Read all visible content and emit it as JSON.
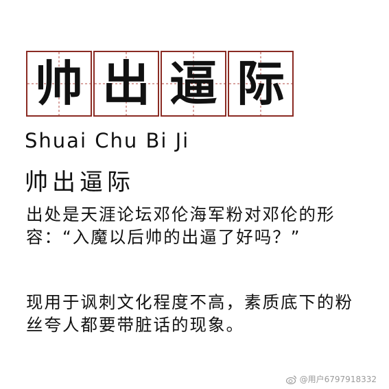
{
  "title_chars": [
    "帅",
    "出",
    "逼",
    "际"
  ],
  "pinyin": "Shuai Chu Bi Ji",
  "heading": "帅出逼际",
  "paragraphs": [
    "出处是天涯论坛邓伦海军粉对邓伦的形容：“入魔以后帅的出逼了好吗？”",
    "现用于讽刺文化程度不高，素质底下的粉丝夸人都要带脏话的现象。"
  ],
  "watermark": {
    "icon": "weibo-icon",
    "text": "@用户6797918332"
  },
  "colors": {
    "grid_border": "#8a2a22",
    "grid_guides": "#b04a40",
    "text": "#111111",
    "watermark": "#9a9a9a"
  }
}
